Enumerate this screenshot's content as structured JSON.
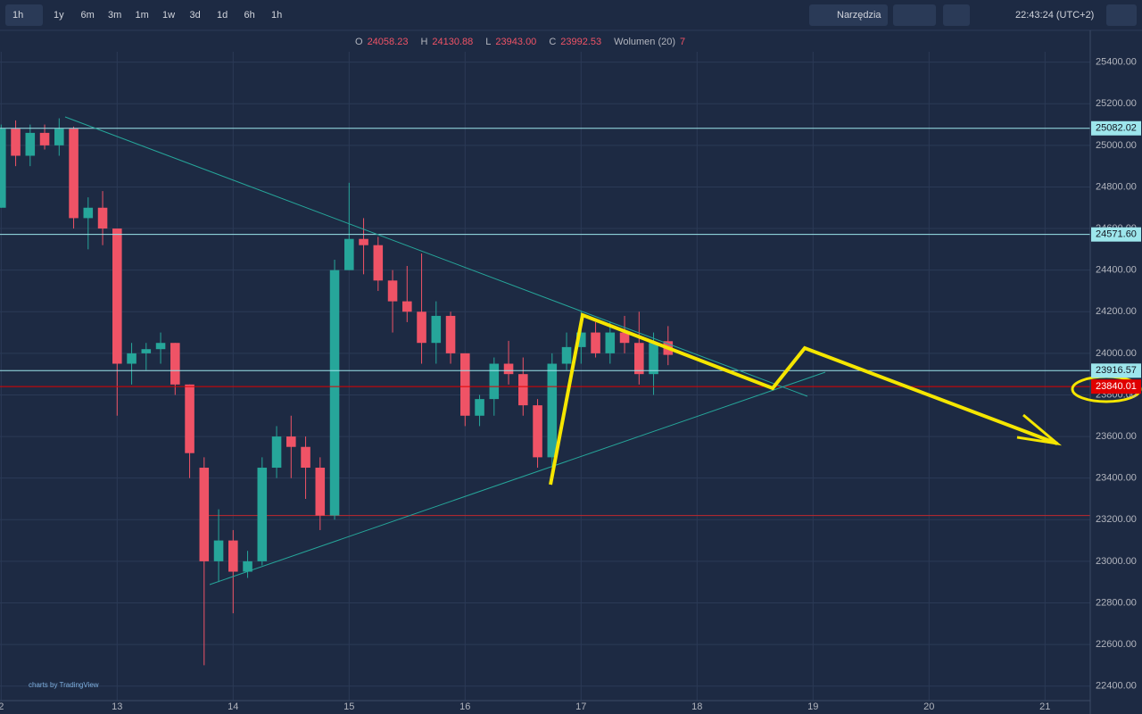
{
  "toolbar": {
    "interval": "1h",
    "ranges": [
      "1y",
      "6m",
      "3m",
      "1m",
      "1w",
      "3d",
      "1d",
      "6h",
      "1h"
    ],
    "tools": "Narzędzia",
    "clock": "22:43:24 (UTC+2)"
  },
  "legend": [
    {
      "key": "O",
      "value": "24058.23"
    },
    {
      "key": "H",
      "value": "24130.88"
    },
    {
      "key": "L",
      "value": "23943.00"
    },
    {
      "key": "C",
      "value": "23992.53"
    },
    {
      "key": "Wolumen (20)",
      "value": "7"
    }
  ],
  "watermark": "charts by TradingView",
  "chart_data": {
    "type": "candlestick",
    "x": [
      12.0,
      12.125,
      12.25,
      12.375,
      12.5,
      12.625,
      12.75,
      12.875,
      13.0,
      13.125,
      13.25,
      13.375,
      13.5,
      13.625,
      13.75,
      13.875,
      14.0,
      14.125,
      14.25,
      14.375,
      14.5,
      14.625,
      14.75,
      14.875,
      15.0,
      15.125,
      15.25,
      15.375,
      15.5,
      15.625,
      15.75,
      15.875,
      16.0,
      16.125,
      16.25,
      16.375,
      16.5,
      16.625,
      16.75,
      16.875,
      17.0,
      17.125,
      17.25,
      17.375,
      17.5,
      17.625,
      17.75
    ],
    "open": [
      24700,
      25080,
      24950,
      25060,
      25000,
      25080,
      24650,
      24700,
      24600,
      23950,
      24000,
      24020,
      24050,
      23850,
      23450,
      23000,
      23100,
      22950,
      23000,
      23450,
      23600,
      23550,
      23450,
      23220,
      24400,
      24550,
      24520,
      24350,
      24250,
      24200,
      24050,
      24180,
      24000,
      23700,
      23780,
      23950,
      23900,
      23750,
      23500,
      23950,
      24030,
      24100,
      24000,
      24100,
      24050,
      23900,
      24058.23
    ],
    "high": [
      25100,
      25120,
      25100,
      25100,
      25130,
      25090,
      24750,
      24780,
      24600,
      24050,
      24050,
      24100,
      24050,
      23850,
      23500,
      23250,
      23150,
      23050,
      23500,
      23650,
      23700,
      23600,
      23500,
      24450,
      24820,
      24650,
      24560,
      24400,
      24420,
      24480,
      24250,
      24200,
      24000,
      23800,
      23980,
      24060,
      23980,
      23780,
      24000,
      24100,
      24200,
      24150,
      24150,
      24180,
      24200,
      24100,
      24130.88
    ],
    "low": [
      24700,
      24900,
      24900,
      24980,
      24950,
      24600,
      24500,
      24520,
      23700,
      23850,
      23920,
      23950,
      23800,
      23400,
      22500,
      22900,
      22750,
      22920,
      22980,
      23400,
      23400,
      23300,
      23150,
      23200,
      24400,
      24380,
      24300,
      24100,
      24150,
      23950,
      23950,
      23950,
      23650,
      23650,
      23700,
      23850,
      23700,
      23450,
      23450,
      23920,
      23950,
      23980,
      23950,
      24000,
      23850,
      23800,
      23943
    ],
    "close": [
      25080,
      24950,
      25060,
      25000,
      25080,
      24650,
      24700,
      24600,
      23950,
      24000,
      24020,
      24050,
      23850,
      23520,
      23000,
      23100,
      22950,
      23000,
      23450,
      23600,
      23550,
      23450,
      23220,
      24400,
      24550,
      24520,
      24350,
      24250,
      24200,
      24050,
      24180,
      24000,
      23700,
      23780,
      23950,
      23900,
      23750,
      23500,
      23950,
      24030,
      24100,
      24000,
      24100,
      24050,
      23900,
      24050,
      23992.53
    ],
    "up_color": "#26a69a",
    "down_color": "#ef5366",
    "xlim": [
      11.99,
      21.39
    ],
    "xticks": [
      {
        "value": 12,
        "label": "2"
      },
      13,
      14,
      15,
      16,
      17,
      18,
      19,
      20,
      21
    ],
    "ylim": [
      22330,
      25450
    ],
    "yticks": [
      {
        "value": 22400,
        "label": "22400.00"
      },
      {
        "value": 22600,
        "label": "22600.00"
      },
      {
        "value": 22800,
        "label": "22800.00"
      },
      {
        "value": 23000,
        "label": "23000.00"
      },
      {
        "value": 23200,
        "label": "23200.00"
      },
      {
        "value": 23400,
        "label": "23400.00"
      },
      {
        "value": 23600,
        "label": "23600.00"
      },
      {
        "value": 23800,
        "label": "23800.00"
      },
      {
        "value": 24000,
        "label": "24000.00"
      },
      {
        "value": 24200,
        "label": "24200.00"
      },
      {
        "value": 24400,
        "label": "24400.00"
      },
      {
        "value": 24600,
        "label": "24600.00"
      },
      {
        "value": 24800,
        "label": "24800.00"
      },
      {
        "value": 25000,
        "label": "25000.00"
      },
      {
        "value": 25200,
        "label": "25200.00"
      },
      {
        "value": 25400,
        "label": "25400.00"
      }
    ],
    "grid": true,
    "price_lines": [
      {
        "value": 25082.02,
        "color": "#9de6ec"
      },
      {
        "value": {
          "value": 24571.6,
          "label": "24571.60"
        },
        "color": "#9de6ec"
      },
      {
        "value": 23916.57,
        "color": "#9de6ec"
      },
      {
        "value": 23840.01,
        "color": "#e00000"
      }
    ],
    "support_lines": [
      23220
    ]
  }
}
